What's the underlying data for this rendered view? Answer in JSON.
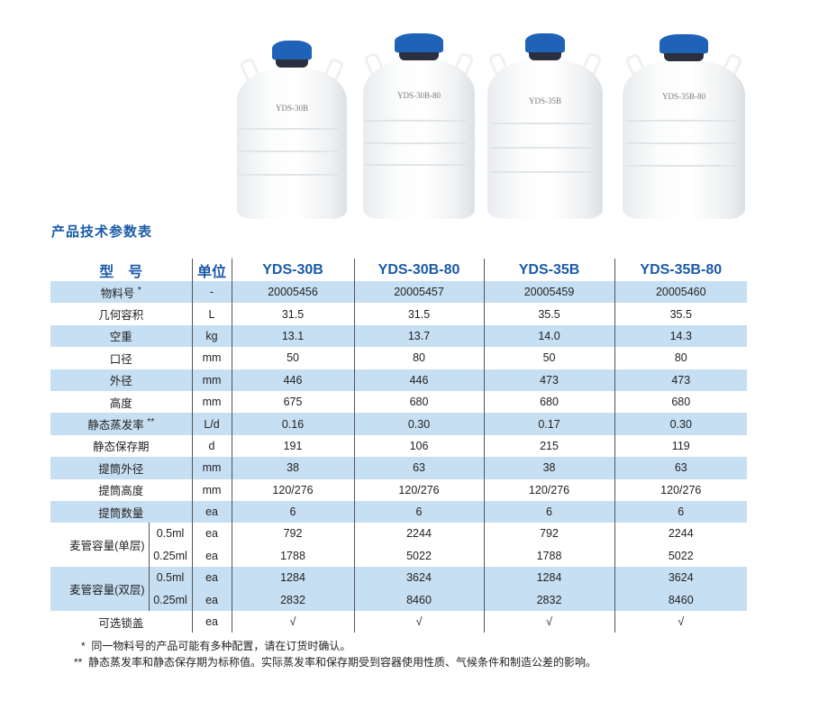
{
  "products": [
    {
      "tank_label": "YDS-30B"
    },
    {
      "tank_label": "YDS-30B-80"
    },
    {
      "tank_label": "YDS-35B"
    },
    {
      "tank_label": "YDS-35B-80"
    }
  ],
  "title": "产品技术参数表",
  "table": {
    "header": {
      "model": "型　号",
      "unit": "单位",
      "models": [
        "YDS-30B",
        "YDS-30B-80",
        "YDS-35B",
        "YDS-35B-80"
      ]
    },
    "rows": [
      {
        "name": "物料号",
        "mark": "*",
        "unit": "-",
        "values": [
          "20005456",
          "20005457",
          "20005459",
          "20005460"
        ]
      },
      {
        "name": "几何容积",
        "unit": "L",
        "values": [
          "31.5",
          "31.5",
          "35.5",
          "35.5"
        ]
      },
      {
        "name": "空重",
        "unit": "kg",
        "values": [
          "13.1",
          "13.7",
          "14.0",
          "14.3"
        ]
      },
      {
        "name": "口径",
        "unit": "mm",
        "values": [
          "50",
          "80",
          "50",
          "80"
        ]
      },
      {
        "name": "外径",
        "unit": "mm",
        "values": [
          "446",
          "446",
          "473",
          "473"
        ]
      },
      {
        "name": "高度",
        "unit": "mm",
        "values": [
          "675",
          "680",
          "680",
          "680"
        ]
      },
      {
        "name": "静态蒸发率",
        "mark": "**",
        "unit": "L/d",
        "values": [
          "0.16",
          "0.30",
          "0.17",
          "0.30"
        ]
      },
      {
        "name": "静态保存期",
        "unit": "d",
        "values": [
          "191",
          "106",
          "215",
          "119"
        ]
      },
      {
        "name": "提筒外径",
        "unit": "mm",
        "values": [
          "38",
          "63",
          "38",
          "63"
        ]
      },
      {
        "name": "提筒高度",
        "unit": "mm",
        "values": [
          "120/276",
          "120/276",
          "120/276",
          "120/276"
        ]
      },
      {
        "name": "提筒数量",
        "unit": "ea",
        "values": [
          "6",
          "6",
          "6",
          "6"
        ]
      }
    ],
    "straw_groups": [
      {
        "name": "麦管容量(单层)",
        "subs": [
          {
            "size": "0.5ml",
            "unit": "ea",
            "values": [
              "792",
              "2244",
              "792",
              "2244"
            ]
          },
          {
            "size": "0.25ml",
            "unit": "ea",
            "values": [
              "1788",
              "5022",
              "1788",
              "5022"
            ]
          }
        ]
      },
      {
        "name": "麦管容量(双层)",
        "subs": [
          {
            "size": "0.5ml",
            "unit": "ea",
            "values": [
              "1284",
              "3624",
              "1284",
              "3624"
            ]
          },
          {
            "size": "0.25ml",
            "unit": "ea",
            "values": [
              "2832",
              "8460",
              "2832",
              "8460"
            ]
          }
        ]
      }
    ],
    "lock": {
      "name": "可选锁盖",
      "unit": "ea",
      "values": [
        "√",
        "√",
        "√",
        "√"
      ]
    }
  },
  "notes": [
    {
      "mark": "*",
      "text": "同一物料号的产品可能有多种配置，请在订货时确认。"
    },
    {
      "mark": "**",
      "text": "静态蒸发率和静态保存期为标称值。实际蒸发率和保存期受到容器使用性质、气候条件和制造公差的影响。"
    }
  ],
  "colors": {
    "accent": "#1a5aa8",
    "row_band": "#c7dff2",
    "cap": "#1f63b8"
  }
}
